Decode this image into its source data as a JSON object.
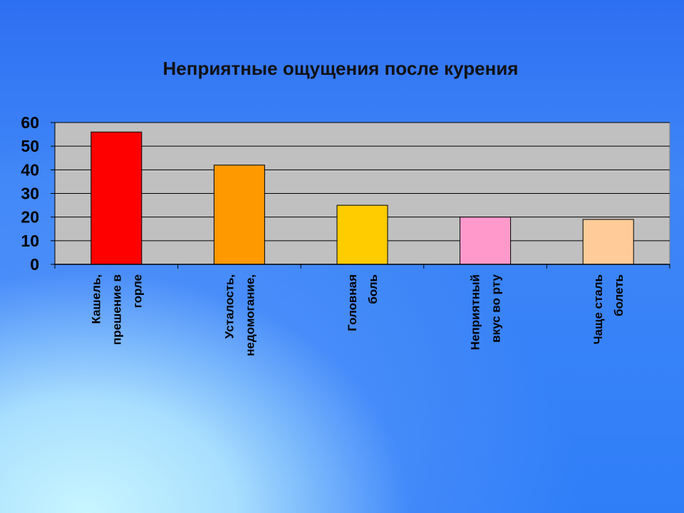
{
  "chart_data": {
    "type": "bar",
    "title": "Неприятные ощущения после курения",
    "xlabel": "",
    "ylabel": "",
    "ylim": [
      0,
      60
    ],
    "yticks": [
      0,
      10,
      20,
      30,
      40,
      50,
      60
    ],
    "grid": true,
    "legend": "none",
    "categories": [
      [
        "Кашель,",
        "прешение в",
        "горле"
      ],
      [
        "Усталость,",
        "недомогание,"
      ],
      [
        "Головная",
        "боль"
      ],
      [
        "Неприятный",
        "вкус во рту"
      ],
      [
        "Чаще сталь",
        "болеть"
      ]
    ],
    "values": [
      56,
      42,
      25,
      20,
      19
    ],
    "colors": [
      "#ff0000",
      "#ff9900",
      "#ffcc00",
      "#ff99cc",
      "#ffcc99"
    ],
    "plot_background": "#c0c0c0"
  }
}
